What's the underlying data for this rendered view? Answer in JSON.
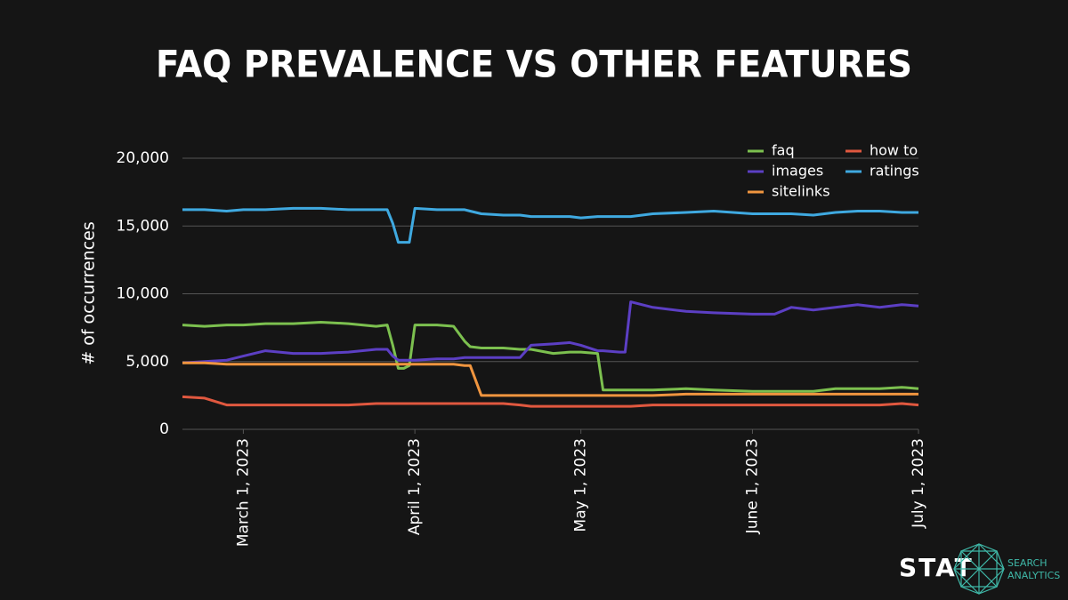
{
  "chart_data": {
    "type": "line",
    "title": "FAQ PREVALENCE VS OTHER FEATURES",
    "y_label": "# of occurrences",
    "x": [
      "2023-02-18",
      "2023-02-22",
      "2023-02-26",
      "2023-03-01",
      "2023-03-05",
      "2023-03-10",
      "2023-03-15",
      "2023-03-20",
      "2023-03-25",
      "2023-03-27",
      "2023-03-28",
      "2023-03-29",
      "2023-03-30",
      "2023-03-31",
      "2023-04-01",
      "2023-04-05",
      "2023-04-08",
      "2023-04-10",
      "2023-04-11",
      "2023-04-13",
      "2023-04-17",
      "2023-04-20",
      "2023-04-22",
      "2023-04-26",
      "2023-04-29",
      "2023-05-01",
      "2023-05-04",
      "2023-05-05",
      "2023-05-08",
      "2023-05-09",
      "2023-05-10",
      "2023-05-14",
      "2023-05-20",
      "2023-05-25",
      "2023-06-01",
      "2023-06-05",
      "2023-06-08",
      "2023-06-12",
      "2023-06-16",
      "2023-06-20",
      "2023-06-24",
      "2023-06-28",
      "2023-07-01"
    ],
    "series": [
      {
        "name": "faq",
        "color": "#7cc04f",
        "values": [
          7700,
          7600,
          7700,
          7700,
          7800,
          7800,
          7900,
          7800,
          7600,
          7700,
          6200,
          4500,
          4500,
          4700,
          7700,
          7700,
          7600,
          6500,
          6100,
          6000,
          6000,
          5900,
          5900,
          5600,
          5700,
          5700,
          5600,
          2900,
          2900,
          2900,
          2900,
          2900,
          3000,
          2900,
          2800,
          2800,
          2800,
          2800,
          3000,
          3000,
          3000,
          3100,
          3000
        ]
      },
      {
        "name": "images",
        "color": "#5c3fc4",
        "values": [
          4900,
          5000,
          5100,
          5400,
          5800,
          5600,
          5600,
          5700,
          5900,
          5900,
          5400,
          5100,
          5100,
          5100,
          5100,
          5200,
          5200,
          5300,
          5300,
          5300,
          5300,
          5300,
          6200,
          6300,
          6400,
          6200,
          5800,
          5800,
          5700,
          5700,
          9400,
          9000,
          8700,
          8600,
          8500,
          8500,
          9000,
          8800,
          9000,
          9200,
          9000,
          9200,
          9100
        ]
      },
      {
        "name": "sitelinks",
        "color": "#f0953f",
        "values": [
          4900,
          4900,
          4800,
          4800,
          4800,
          4800,
          4800,
          4800,
          4800,
          4800,
          4800,
          4800,
          4800,
          4800,
          4800,
          4800,
          4800,
          4700,
          4700,
          2500,
          2500,
          2500,
          2500,
          2500,
          2500,
          2500,
          2500,
          2500,
          2500,
          2500,
          2500,
          2500,
          2600,
          2600,
          2600,
          2600,
          2600,
          2600,
          2600,
          2600,
          2600,
          2600,
          2600
        ]
      },
      {
        "name": "how to",
        "color": "#e0583f",
        "values": [
          2400,
          2300,
          1800,
          1800,
          1800,
          1800,
          1800,
          1800,
          1900,
          1900,
          1900,
          1900,
          1900,
          1900,
          1900,
          1900,
          1900,
          1900,
          1900,
          1900,
          1900,
          1800,
          1700,
          1700,
          1700,
          1700,
          1700,
          1700,
          1700,
          1700,
          1700,
          1800,
          1800,
          1800,
          1800,
          1800,
          1800,
          1800,
          1800,
          1800,
          1800,
          1900,
          1800
        ]
      },
      {
        "name": "ratings",
        "color": "#3fa9e0",
        "values": [
          16200,
          16200,
          16100,
          16200,
          16200,
          16300,
          16300,
          16200,
          16200,
          16200,
          15200,
          13800,
          13800,
          13800,
          16300,
          16200,
          16200,
          16200,
          16100,
          15900,
          15800,
          15800,
          15700,
          15700,
          15700,
          15600,
          15700,
          15700,
          15700,
          15700,
          15700,
          15900,
          16000,
          16100,
          15900,
          15900,
          15900,
          15800,
          16000,
          16100,
          16100,
          16000,
          16000
        ]
      }
    ],
    "xlim": [
      "2023-02-18",
      "2023-07-01"
    ],
    "xticks": [
      {
        "value": "2023-03-01",
        "label": "March 1, 2023"
      },
      {
        "value": "2023-04-01",
        "label": "April 1, 2023"
      },
      {
        "value": "2023-05-01",
        "label": "May 1, 2023"
      },
      {
        "value": "2023-06-01",
        "label": "June 1, 2023"
      },
      {
        "value": "2023-07-01",
        "label": "July 1, 2023"
      }
    ],
    "ylim": [
      0,
      20000
    ],
    "yticks": [
      0,
      {
        "value": 5000,
        "label": "5,000"
      },
      {
        "value": 10000,
        "label": "10,000"
      },
      {
        "value": 15000,
        "label": "15,000"
      },
      {
        "value": 20000,
        "label": "20,000"
      }
    ],
    "grid": true,
    "legend": "top-right"
  },
  "logo": {
    "name": "STAT",
    "tagline_1": "SEARCH",
    "tagline_2": "ANALYTICS"
  }
}
